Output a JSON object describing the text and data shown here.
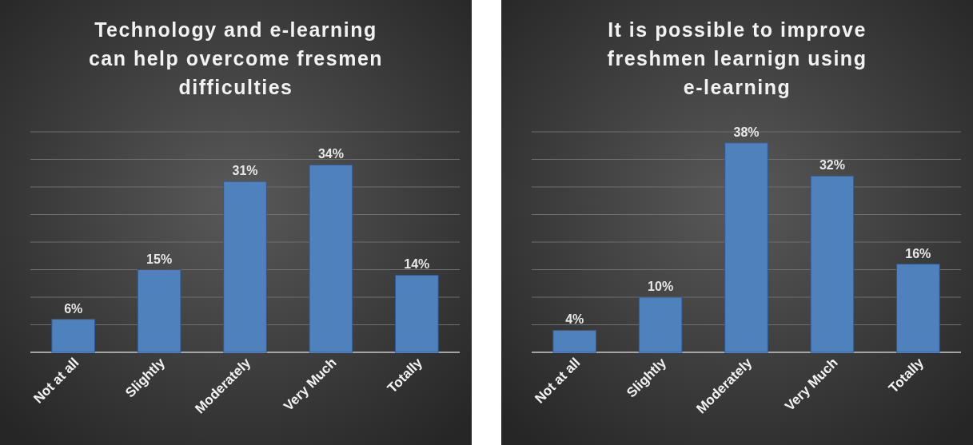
{
  "chart_data": [
    {
      "type": "bar",
      "title": "Technology and e-learning can help overcome fresmen difficulties",
      "categories": [
        "Not at all",
        "Slightly",
        "Moderately",
        "Very Much",
        "Totally"
      ],
      "values": [
        6,
        15,
        31,
        34,
        14
      ],
      "color": "#4f81bd",
      "ylim": [
        0,
        40
      ],
      "yticks": [
        {
          "value": 0,
          "label": null
        },
        {
          "value": 5,
          "label": null
        },
        {
          "value": 10,
          "label": null
        },
        {
          "value": 15,
          "label": null
        },
        {
          "value": 20,
          "label": null
        },
        {
          "value": 25,
          "label": null
        },
        {
          "value": 30,
          "label": null
        },
        {
          "value": 35,
          "label": null
        },
        {
          "value": 40,
          "label": null
        }
      ],
      "tick_labels": "x",
      "grid": "y",
      "value_labels": [
        "6%",
        "15%",
        "31%",
        "34%",
        "14%"
      ]
    },
    {
      "type": "bar",
      "title": "It is possible to improve freshmen learnign using e-learning",
      "categories": [
        "Not at all",
        "Slightly",
        "Moderately",
        "Very Much",
        "Totally"
      ],
      "values": [
        4,
        10,
        38,
        32,
        16
      ],
      "color": "#4f81bd",
      "ylim": [
        0,
        40
      ],
      "yticks": [
        {
          "value": 0,
          "label": null
        },
        {
          "value": 5,
          "label": null
        },
        {
          "value": 10,
          "label": null
        },
        {
          "value": 15,
          "label": null
        },
        {
          "value": 20,
          "label": null
        },
        {
          "value": 25,
          "label": null
        },
        {
          "value": 30,
          "label": null
        },
        {
          "value": 35,
          "label": null
        },
        {
          "value": 40,
          "label": null
        }
      ],
      "tick_labels": "x",
      "grid": "y",
      "value_labels": [
        "4%",
        "10%",
        "38%",
        "32%",
        "16%"
      ]
    }
  ]
}
